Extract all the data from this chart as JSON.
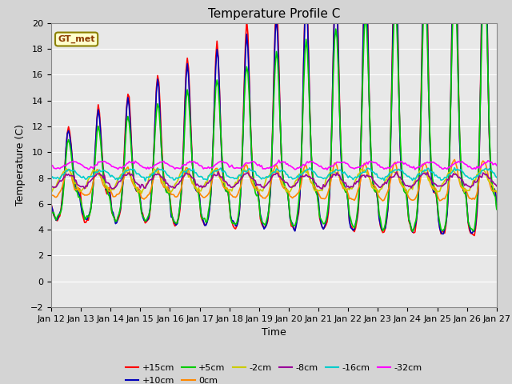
{
  "title": "Temperature Profile C",
  "xlabel": "Time",
  "ylabel": "Temperature (C)",
  "ylim": [
    -2,
    20
  ],
  "xlim": [
    0,
    360
  ],
  "plot_bg_color": "#e8e8e8",
  "fig_bg_color": "#d4d4d4",
  "annotation_text": "GT_met",
  "annotation_bg": "#ffffcc",
  "annotation_border": "#8B8000",
  "series_order": [
    "+15cm",
    "+10cm",
    "+5cm",
    "0cm",
    "-2cm",
    "-8cm",
    "-16cm",
    "-32cm"
  ],
  "series": {
    "+15cm": {
      "color": "#ff0000",
      "lw": 1.2
    },
    "+10cm": {
      "color": "#0000bb",
      "lw": 1.2
    },
    "+5cm": {
      "color": "#00cc00",
      "lw": 1.2
    },
    "0cm": {
      "color": "#ff8800",
      "lw": 1.2
    },
    "-2cm": {
      "color": "#cccc00",
      "lw": 1.2
    },
    "-8cm": {
      "color": "#990099",
      "lw": 1.2
    },
    "-16cm": {
      "color": "#00cccc",
      "lw": 1.2
    },
    "-32cm": {
      "color": "#ff00ff",
      "lw": 1.2
    }
  },
  "xtick_labels": [
    "Jan 12",
    "Jan 13",
    "Jan 14",
    "Jan 15",
    "Jan 16",
    "Jan 17",
    "Jan 18",
    "Jan 19",
    "Jan 20",
    "Jan 21",
    "Jan 22",
    "Jan 23",
    "Jan 24",
    "Jan 25",
    "Jan 26",
    "Jan 27"
  ],
  "xtick_positions": [
    0,
    24,
    48,
    72,
    96,
    120,
    144,
    168,
    192,
    216,
    240,
    264,
    288,
    312,
    336,
    360
  ],
  "legend_order": [
    "+15cm",
    "+10cm",
    "+5cm",
    "0cm",
    "-2cm",
    "-8cm",
    "-16cm",
    "-32cm"
  ]
}
